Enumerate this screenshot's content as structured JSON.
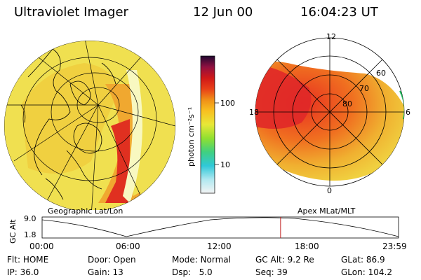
{
  "header": {
    "instrument": "Ultraviolet Imager",
    "date": "12 Jun 00",
    "time": "16:04:23 UT"
  },
  "colorbar": {
    "unit_label": "photon cm⁻²s⁻¹",
    "ticks": [
      "100",
      "10"
    ]
  },
  "geo_panel": {
    "caption": "Geographic Lat/Lon"
  },
  "apex_panel": {
    "caption": "Apex MLat/MLT",
    "mlt_labels": [
      "12",
      "6",
      "0",
      "18"
    ],
    "lat_labels": [
      "60",
      "70",
      "80"
    ]
  },
  "timeline": {
    "ylabel": "GC Alt",
    "y_ticks": [
      "9.0",
      "1.8"
    ],
    "x_ticks": [
      "00:00",
      "06:00",
      "12:00",
      "18:00",
      "23:59"
    ],
    "current_time_fraction": 0.669
  },
  "status": {
    "row1": [
      {
        "label": "Flt:",
        "value": "HOME"
      },
      {
        "label": "Door:",
        "value": "Open"
      },
      {
        "label": "Mode:",
        "value": "Normal"
      },
      {
        "label": "GC Alt:",
        "value": "9.2 Re"
      },
      {
        "label": "GLat:",
        "value": "86.9"
      }
    ],
    "row2": [
      {
        "label": "IP:",
        "value": "36.0"
      },
      {
        "label": "Gain:",
        "value": "13"
      },
      {
        "label": "Dsp:",
        "value": "5.0"
      },
      {
        "label": "Seq:",
        "value": "39"
      },
      {
        "label": "GLon:",
        "value": "104.2"
      }
    ]
  },
  "colors": {
    "low_yellow": "#e8e838",
    "mid_orange": "#f0a020",
    "high_red": "#e02020",
    "edge_green": "#20c060",
    "marker_red": "#c02020"
  }
}
